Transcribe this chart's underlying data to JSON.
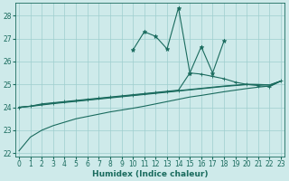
{
  "xlabel": "Humidex (Indice chaleur)",
  "bg_color": "#ceeaea",
  "grid_color": "#9ecece",
  "line_color": "#1a6b5e",
  "xlim": [
    -0.3,
    23.3
  ],
  "ylim": [
    21.85,
    28.55
  ],
  "yticks": [
    22,
    23,
    24,
    25,
    26,
    27,
    28
  ],
  "xticks": [
    0,
    1,
    2,
    3,
    4,
    5,
    6,
    7,
    8,
    9,
    10,
    11,
    12,
    13,
    14,
    15,
    16,
    17,
    18,
    19,
    20,
    21,
    22,
    23
  ],
  "spiky_line": [
    null,
    null,
    null,
    null,
    null,
    null,
    null,
    null,
    null,
    null,
    26.5,
    27.3,
    27.1,
    26.55,
    28.35,
    25.5,
    26.65,
    25.5,
    26.9,
    null,
    null,
    null,
    null,
    null
  ],
  "smooth_line1": [
    24.0,
    24.05,
    24.15,
    24.2,
    24.25,
    24.3,
    24.35,
    24.4,
    24.45,
    24.5,
    24.55,
    24.6,
    24.65,
    24.7,
    24.75,
    25.5,
    25.45,
    25.35,
    25.25,
    25.1,
    25.0,
    24.95,
    24.9,
    25.15
  ],
  "smooth_line2": [
    24.0,
    24.05,
    24.12,
    24.18,
    24.23,
    24.28,
    24.33,
    24.38,
    24.43,
    24.48,
    24.53,
    24.58,
    24.63,
    24.68,
    24.73,
    24.78,
    24.83,
    24.88,
    24.93,
    24.97,
    25.01,
    25.0,
    24.98,
    25.15
  ],
  "smooth_line3": [
    24.0,
    24.04,
    24.1,
    24.16,
    24.21,
    24.26,
    24.31,
    24.36,
    24.41,
    24.46,
    24.51,
    24.56,
    24.61,
    24.66,
    24.71,
    24.76,
    24.81,
    24.86,
    24.91,
    24.95,
    24.99,
    24.99,
    24.97,
    25.15
  ],
  "bottom_line": [
    22.1,
    22.7,
    23.0,
    23.2,
    23.35,
    23.5,
    23.6,
    23.7,
    23.8,
    23.88,
    23.96,
    24.05,
    24.15,
    24.25,
    24.35,
    24.45,
    24.52,
    24.6,
    24.68,
    24.75,
    24.82,
    24.88,
    24.93,
    25.15
  ]
}
